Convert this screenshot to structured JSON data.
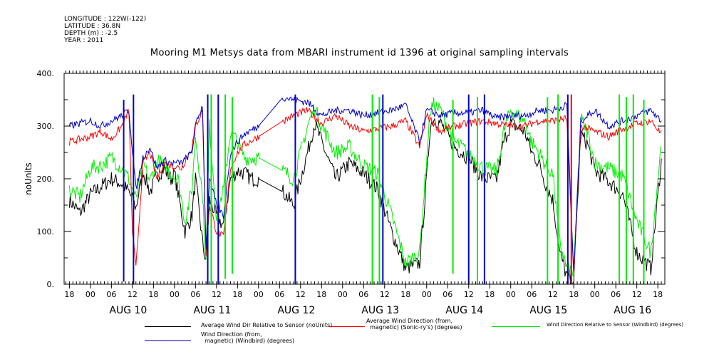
{
  "meta": {
    "longitude": "LONGITUDE : 122W(-122)",
    "latitude": "LATITUDE : 36.8N",
    "depth": "DEPTH (m) : -2.5",
    "year": "YEAR : 2011"
  },
  "chart_data": {
    "type": "line",
    "title": "Mooring M1 Metsys data from MBARI instrument id 1396 at original sampling intervals",
    "ylabel": "noUnits",
    "xlabel": "",
    "ylim": [
      0,
      400
    ],
    "yticks": [
      "0.",
      "100.",
      "200.",
      "300.",
      "400."
    ],
    "y_tick_values": [
      0,
      100,
      200,
      300,
      400
    ],
    "xlim_hours": [
      -7.5,
      164
    ],
    "hour_ticks": [
      "00",
      "06",
      "12",
      "18"
    ],
    "day_labels": [
      "AUG 10",
      "AUG 11",
      "AUG 12",
      "AUG 13",
      "AUG 14",
      "AUG 15",
      "AUG 16"
    ],
    "grid": false,
    "legend_position": "bottom",
    "series": [
      {
        "name": "Average Wind Dir Relative to Sensor (noUnits)",
        "color": "#000000",
        "x": [
          -6,
          -3,
          0,
          3,
          6,
          9,
          11,
          13,
          15,
          17,
          19,
          21,
          23,
          24,
          27,
          29,
          30,
          32,
          33,
          34,
          36,
          38,
          40,
          42,
          44,
          46,
          48,
          55,
          58,
          62,
          64,
          66,
          70,
          74,
          78,
          82,
          86,
          90,
          94,
          96,
          97,
          98,
          100,
          104,
          108,
          112,
          116,
          118,
          120,
          124,
          126,
          128,
          130,
          132,
          134,
          136,
          138,
          140,
          142,
          144,
          148,
          152,
          156,
          160,
          163
        ],
        "y": [
          160,
          135,
          170,
          185,
          200,
          190,
          175,
          145,
          215,
          175,
          205,
          220,
          200,
          210,
          100,
          130,
          200,
          80,
          40,
          160,
          130,
          110,
          200,
          215,
          210,
          200,
          200,
          175,
          150,
          250,
          305,
          270,
          200,
          230,
          210,
          180,
          100,
          30,
          40,
          200,
          300,
          315,
          305,
          260,
          240,
          200,
          200,
          270,
          305,
          290,
          250,
          230,
          190,
          160,
          60,
          15,
          10,
          285,
          265,
          215,
          195,
          170,
          60,
          30,
          235
        ]
      },
      {
        "name": "Average Wind Direction (from, magnetic) (Sonic-ry's) (degrees)",
        "color": "#ff0000",
        "x": [
          -6,
          -3,
          0,
          3,
          6,
          9,
          11,
          12,
          13,
          15,
          17,
          19,
          21,
          23,
          26,
          29,
          30,
          32,
          33,
          34,
          36,
          38,
          40,
          42,
          44,
          48,
          55,
          58,
          62,
          66,
          70,
          74,
          78,
          82,
          86,
          90,
          94,
          96,
          100,
          104,
          108,
          112,
          116,
          120,
          124,
          128,
          132,
          136,
          138,
          140,
          144,
          148,
          152,
          156,
          160,
          163
        ],
        "y": [
          270,
          275,
          280,
          290,
          275,
          300,
          330,
          100,
          30,
          230,
          250,
          200,
          230,
          225,
          220,
          260,
          300,
          330,
          60,
          150,
          100,
          90,
          220,
          250,
          265,
          280,
          310,
          320,
          330,
          305,
          320,
          300,
          290,
          295,
          300,
          310,
          260,
          320,
          290,
          300,
          305,
          310,
          305,
          300,
          300,
          310,
          310,
          315,
          15,
          300,
          290,
          280,
          295,
          305,
          310,
          285
        ]
      },
      {
        "name": "Wind Direction Relative to Sensor (Windbird) (degrees)",
        "color": "#00ee00",
        "x": [
          -6,
          -3,
          0,
          3,
          6,
          9,
          11,
          13,
          15,
          17,
          19,
          21,
          23,
          25,
          27,
          29,
          30,
          32,
          33,
          34,
          36,
          38,
          40,
          42,
          44,
          46,
          48,
          55,
          58,
          62,
          64,
          66,
          70,
          74,
          78,
          82,
          86,
          90,
          94,
          96,
          97,
          98,
          100,
          104,
          108,
          112,
          116,
          118,
          120,
          124,
          126,
          128,
          130,
          132,
          134,
          136,
          138,
          140,
          142,
          144,
          148,
          152,
          156,
          160,
          163
        ],
        "y": [
          180,
          165,
          220,
          225,
          240,
          220,
          200,
          160,
          230,
          195,
          235,
          225,
          210,
          200,
          120,
          180,
          280,
          170,
          40,
          300,
          130,
          180,
          290,
          270,
          240,
          240,
          240,
          215,
          200,
          300,
          335,
          300,
          250,
          260,
          225,
          210,
          130,
          40,
          60,
          240,
          330,
          340,
          330,
          270,
          250,
          220,
          215,
          290,
          330,
          310,
          270,
          250,
          225,
          210,
          80,
          30,
          20,
          315,
          285,
          230,
          220,
          205,
          120,
          60,
          270
        ]
      },
      {
        "name": "Wind Direction (from, magnetic) (Windbird) (degrees)",
        "color": "#0000cc",
        "x": [
          -6,
          -3,
          0,
          3,
          6,
          9,
          11,
          13,
          15,
          17,
          19,
          21,
          23,
          26,
          29,
          30,
          32,
          33,
          34,
          36,
          38,
          40,
          42,
          44,
          48,
          55,
          58,
          62,
          66,
          70,
          74,
          78,
          82,
          86,
          90,
          94,
          96,
          100,
          104,
          108,
          112,
          116,
          120,
          124,
          128,
          132,
          136,
          138,
          140,
          144,
          148,
          152,
          156,
          160,
          163
        ],
        "y": [
          300,
          305,
          310,
          300,
          310,
          320,
          330,
          180,
          240,
          260,
          220,
          235,
          230,
          230,
          250,
          300,
          340,
          70,
          200,
          150,
          130,
          250,
          270,
          285,
          300,
          355,
          350,
          345,
          320,
          330,
          330,
          320,
          325,
          330,
          340,
          270,
          330,
          320,
          325,
          325,
          330,
          315,
          320,
          320,
          330,
          330,
          340,
          20,
          310,
          330,
          300,
          310,
          320,
          330,
          310
        ]
      }
    ],
    "spikes": [
      {
        "series": 3,
        "x": 9.5,
        "y": [
          5,
          350
        ]
      },
      {
        "series": 3,
        "x": 12.3,
        "y": [
          0,
          360
        ]
      },
      {
        "series": 3,
        "x": 33.5,
        "y": [
          0,
          360
        ]
      },
      {
        "series": 3,
        "x": 36.5,
        "y": [
          0,
          360
        ]
      },
      {
        "series": 3,
        "x": 58.5,
        "y": [
          0,
          360
        ]
      },
      {
        "series": 3,
        "x": 83.5,
        "y": [
          0,
          360
        ]
      },
      {
        "series": 3,
        "x": 108,
        "y": [
          0,
          360
        ]
      },
      {
        "series": 3,
        "x": 112.5,
        "y": [
          0,
          360
        ]
      },
      {
        "series": 3,
        "x": 136.3,
        "y": [
          0,
          360
        ]
      },
      {
        "series": 1,
        "x": 137.3,
        "y": [
          0,
          360
        ]
      },
      {
        "series": 2,
        "x": 34.5,
        "y": [
          0,
          360
        ]
      },
      {
        "series": 2,
        "x": 38.5,
        "y": [
          10,
          360
        ]
      },
      {
        "series": 2,
        "x": 40.5,
        "y": [
          20,
          355
        ]
      },
      {
        "series": 2,
        "x": 80.5,
        "y": [
          0,
          360
        ]
      },
      {
        "series": 2,
        "x": 82.5,
        "y": [
          0,
          355
        ]
      },
      {
        "series": 2,
        "x": 103.5,
        "y": [
          20,
          350
        ]
      },
      {
        "series": 2,
        "x": 110.5,
        "y": [
          0,
          355
        ]
      },
      {
        "series": 2,
        "x": 130.5,
        "y": [
          0,
          355
        ]
      },
      {
        "series": 2,
        "x": 133.5,
        "y": [
          0,
          360
        ]
      },
      {
        "series": 2,
        "x": 151,
        "y": [
          5,
          360
        ]
      },
      {
        "series": 2,
        "x": 153,
        "y": [
          0,
          355
        ]
      },
      {
        "series": 2,
        "x": 155,
        "y": [
          0,
          360
        ]
      },
      {
        "series": 2,
        "x": 158,
        "y": [
          0,
          350
        ]
      }
    ]
  },
  "legend": [
    {
      "series": 0,
      "text": "Average Wind Dir Relative to Sensor (noUnits)"
    },
    {
      "series": 1,
      "text": "Average Wind Direction (from,\n  magnetic) (Sonic-ry's) (degrees)"
    },
    {
      "series": 2,
      "text": "Wind Direction Relative to Sensor (Windbird) (degrees)"
    },
    {
      "series": 3,
      "text": "Wind Direction (from,\n  magnetic) (Windbird) (degrees)"
    }
  ]
}
